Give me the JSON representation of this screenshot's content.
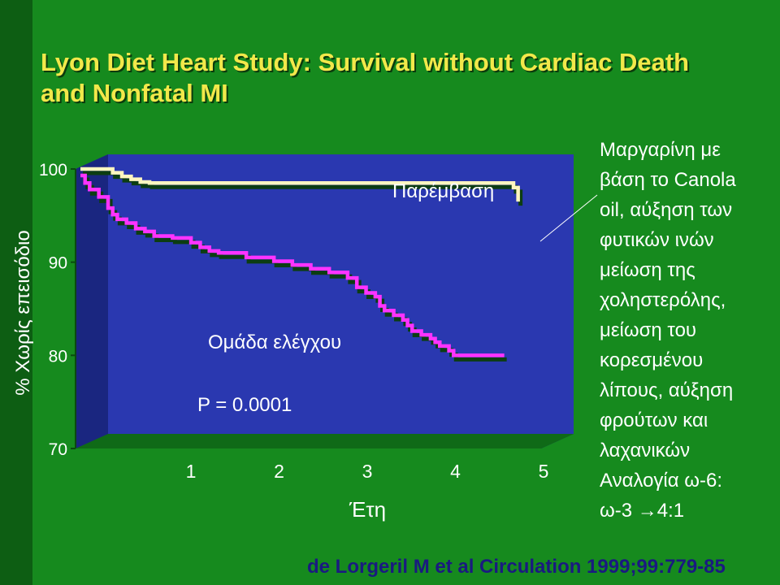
{
  "title": {
    "line1": "Lyon Diet Heart Study: Survival without Cardiac Death",
    "line2": "and Nonfatal MI"
  },
  "colors": {
    "background": "#168a1e",
    "title": "#f2e84a",
    "plot_front": "#2a38b0",
    "intervention_line": "#fff6c0",
    "control_line": "#ff33ff",
    "citation": "#1a1a80"
  },
  "annotations": {
    "intervention": "Παρέμβαση",
    "control": "Ομάδα ελέγχου",
    "pvalue": "P = 0.0001"
  },
  "description_lines": [
    "Μαργαρίνη με",
    "βάση το Canola",
    "oil, αύξηση των",
    "φυτικών ινών",
    "μείωση της",
    "χοληστερόλης,",
    "μείωση του",
    "κορεσμένου",
    "λίπους, αύξηση",
    "φρούτων και",
    "λαχανικών",
    "Αναλογία ω-6:",
    "ω-3 →4:1"
  ],
  "citation": "de Lorgeril M et al Circulation 1999;99:779-85",
  "chart_data": {
    "type": "line",
    "xlabel": "Έτη",
    "ylabel": "% Χωρίς επεισόδιο",
    "xlim": [
      0,
      5
    ],
    "ylim": [
      70,
      100
    ],
    "x_ticks": [
      "1",
      "2",
      "3",
      "4",
      "5"
    ],
    "y_ticks": [
      "100",
      "90",
      "80",
      "70"
    ],
    "series": [
      {
        "name": "Παρέμβαση",
        "color": "#fff6c0",
        "x": [
          0.0,
          0.3,
          0.35,
          0.45,
          0.55,
          0.65,
          0.75,
          4.6,
          4.7,
          4.75
        ],
        "y": [
          100,
          100,
          99.6,
          99.2,
          98.9,
          98.6,
          98.5,
          98.5,
          98.0,
          96.5
        ]
      },
      {
        "name": "Ομάδα ελέγχου",
        "color": "#ff33ff",
        "x": [
          0.0,
          0.05,
          0.1,
          0.2,
          0.3,
          0.35,
          0.4,
          0.5,
          0.6,
          0.7,
          0.8,
          1.0,
          1.2,
          1.3,
          1.4,
          1.5,
          1.8,
          2.1,
          2.3,
          2.5,
          2.7,
          2.9,
          3.0,
          3.1,
          3.2,
          3.25,
          3.3,
          3.4,
          3.5,
          3.55,
          3.6,
          3.7,
          3.8,
          3.85,
          3.9,
          4.0,
          4.05,
          4.6
        ],
        "y": [
          99.3,
          98.5,
          97.8,
          97.0,
          95.8,
          95.1,
          94.6,
          94.2,
          93.6,
          93.3,
          92.8,
          92.6,
          92.1,
          91.6,
          91.2,
          91.0,
          90.5,
          90.1,
          89.7,
          89.3,
          88.9,
          88.3,
          87.3,
          86.7,
          86.3,
          85.3,
          84.8,
          84.3,
          83.8,
          83.2,
          82.6,
          82.2,
          81.8,
          81.4,
          81.0,
          80.5,
          80.0,
          80.0
        ]
      }
    ]
  }
}
